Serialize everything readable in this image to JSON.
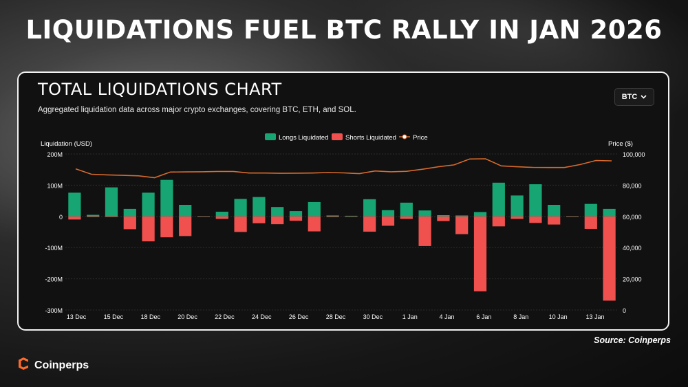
{
  "headline": "LIQUIDATIONS FUEL BTC RALLY IN JAN 2026",
  "card": {
    "title": "TOTAL LIQUIDATIONS CHART",
    "subtitle": "Aggregated liquidation data across major crypto exchanges, covering BTC, ETH, and SOL.",
    "asset_selector": "BTC"
  },
  "source": "Source: Coinperps",
  "brand": {
    "name": "Coinperps"
  },
  "colors": {
    "longs": "#17a673",
    "shorts": "#f0514f",
    "price": "#d86a2c",
    "background": "#111111",
    "text": "#ffffff",
    "logo": "#ff6a2a"
  },
  "icons": {
    "dropdown": "chevron-down-icon",
    "brand": "coinperps-logo-icon"
  },
  "chart_data": {
    "type": "bar",
    "legend": [
      "Longs Liquidated",
      "Shorts Liquidated",
      "Price"
    ],
    "legend_position": "top-center",
    "ylabel_left": "Liquidation (USD)",
    "ylabel_right": "Price ($)",
    "ylim_left": [
      -300000000,
      200000000
    ],
    "ylim_right": [
      0,
      100000
    ],
    "yticks_left": [
      "200M",
      "100M",
      "0",
      "-100M",
      "-200M",
      "-300M"
    ],
    "yticks_right": [
      "100,000",
      "80,000",
      "60,000",
      "40,000",
      "20,000",
      "0"
    ],
    "x_tick_labels": [
      "13 Dec",
      "15 Dec",
      "18 Dec",
      "20 Dec",
      "22 Dec",
      "24 Dec",
      "26 Dec",
      "28 Dec",
      "30 Dec",
      "1 Jan",
      "4 Jan",
      "6 Jan",
      "8 Jan",
      "10 Jan",
      "13 Jan"
    ],
    "grid": true,
    "series": [
      {
        "name": "Longs Liquidated",
        "values": [
          76,
          5,
          93,
          24,
          76,
          117,
          37,
          1,
          15,
          56,
          62,
          30,
          17,
          46,
          3,
          2,
          55,
          20,
          44,
          19,
          4,
          3,
          14,
          108,
          67,
          103,
          37,
          1,
          40,
          24
        ]
      },
      {
        "name": "Shorts Liquidated",
        "values": [
          -10,
          -2,
          -2,
          -41,
          -80,
          -67,
          -63,
          -1,
          -8,
          -50,
          -22,
          -25,
          -14,
          -48,
          -2,
          -1,
          -49,
          -30,
          -8,
          -95,
          -15,
          -57,
          -240,
          -32,
          -8,
          -21,
          -26,
          -1,
          -40,
          -270
        ]
      },
      {
        "name": "Price",
        "values": [
          90500,
          87000,
          86600,
          86300,
          86000,
          84800,
          88400,
          88500,
          88600,
          88800,
          88800,
          87800,
          87800,
          87600,
          87700,
          87800,
          88100,
          87900,
          87400,
          89100,
          88600,
          88900,
          90200,
          91800,
          93000,
          96800,
          96900,
          92400,
          91800,
          91400,
          91300,
          91300,
          93200,
          95800,
          95600
        ]
      }
    ],
    "value_unit": "million USD"
  }
}
